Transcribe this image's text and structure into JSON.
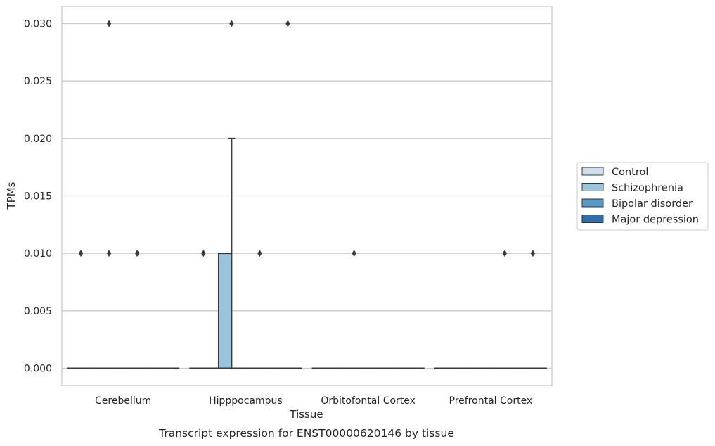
{
  "chart_data": {
    "type": "box",
    "xlabel": "Tissue",
    "ylabel": "TPMs",
    "caption": "Transcript expression for ENST00000620146 by tissue",
    "categories": [
      "Cerebellum",
      "Hipppocampus",
      "Orbitofontal Cortex",
      "Prefrontal Cortex"
    ],
    "ylim": [
      -0.0015,
      0.0315
    ],
    "yticks": [
      "0.000",
      "0.005",
      "0.010",
      "0.015",
      "0.020",
      "0.025",
      "0.030"
    ],
    "grid": true,
    "legend": {
      "placement": "center-right",
      "entries": [
        "Control",
        "Schizophrenia",
        "Bipolar disorder",
        "Major depression"
      ]
    },
    "colors": {
      "Control": "#cfdfee",
      "Schizophrenia": "#9ac3dd",
      "Bipolar disorder": "#5a9ac8",
      "Major depression": "#2e6faf",
      "gridline": "#cccccc",
      "box_line": "#3a3a3a"
    },
    "series": [
      {
        "name": "Control",
        "boxes": [
          {
            "q1": 0.0,
            "median": 0.0,
            "q3": 0.0,
            "whislo": 0.0,
            "whishi": 0.0,
            "fliers": [
              0.01
            ]
          },
          {
            "q1": 0.0,
            "median": 0.0,
            "q3": 0.0,
            "whislo": 0.0,
            "whishi": 0.0,
            "fliers": [
              0.01
            ]
          },
          {
            "q1": 0.0,
            "median": 0.0,
            "q3": 0.0,
            "whislo": 0.0,
            "whishi": 0.0,
            "fliers": []
          },
          {
            "q1": 0.0,
            "median": 0.0,
            "q3": 0.0,
            "whislo": 0.0,
            "whishi": 0.0,
            "fliers": []
          }
        ]
      },
      {
        "name": "Schizophrenia",
        "boxes": [
          {
            "q1": 0.0,
            "median": 0.0,
            "q3": 0.0,
            "whislo": 0.0,
            "whishi": 0.0,
            "fliers": [
              0.01,
              0.03
            ]
          },
          {
            "q1": 0.0,
            "median": 0.0,
            "q3": 0.01,
            "whislo": 0.0,
            "whishi": 0.02,
            "fliers": [
              0.03
            ]
          },
          {
            "q1": 0.0,
            "median": 0.0,
            "q3": 0.0,
            "whislo": 0.0,
            "whishi": 0.0,
            "fliers": [
              0.01
            ]
          },
          {
            "q1": 0.0,
            "median": 0.0,
            "q3": 0.0,
            "whislo": 0.0,
            "whishi": 0.0,
            "fliers": []
          }
        ]
      },
      {
        "name": "Bipolar disorder",
        "boxes": [
          {
            "q1": 0.0,
            "median": 0.0,
            "q3": 0.0,
            "whislo": 0.0,
            "whishi": 0.0,
            "fliers": [
              0.01
            ]
          },
          {
            "q1": 0.0,
            "median": 0.0,
            "q3": 0.0,
            "whislo": 0.0,
            "whishi": 0.0,
            "fliers": [
              0.01
            ]
          },
          {
            "q1": 0.0,
            "median": 0.0,
            "q3": 0.0,
            "whislo": 0.0,
            "whishi": 0.0,
            "fliers": []
          },
          {
            "q1": 0.0,
            "median": 0.0,
            "q3": 0.0,
            "whislo": 0.0,
            "whishi": 0.0,
            "fliers": [
              0.01
            ]
          }
        ]
      },
      {
        "name": "Major depression",
        "boxes": [
          {
            "q1": 0.0,
            "median": 0.0,
            "q3": 0.0,
            "whislo": 0.0,
            "whishi": 0.0,
            "fliers": []
          },
          {
            "q1": 0.0,
            "median": 0.0,
            "q3": 0.0,
            "whislo": 0.0,
            "whishi": 0.0,
            "fliers": [
              0.03
            ]
          },
          {
            "q1": 0.0,
            "median": 0.0,
            "q3": 0.0,
            "whislo": 0.0,
            "whishi": 0.0,
            "fliers": []
          },
          {
            "q1": 0.0,
            "median": 0.0,
            "q3": 0.0,
            "whislo": 0.0,
            "whishi": 0.0,
            "fliers": [
              0.01
            ]
          }
        ]
      }
    ]
  }
}
